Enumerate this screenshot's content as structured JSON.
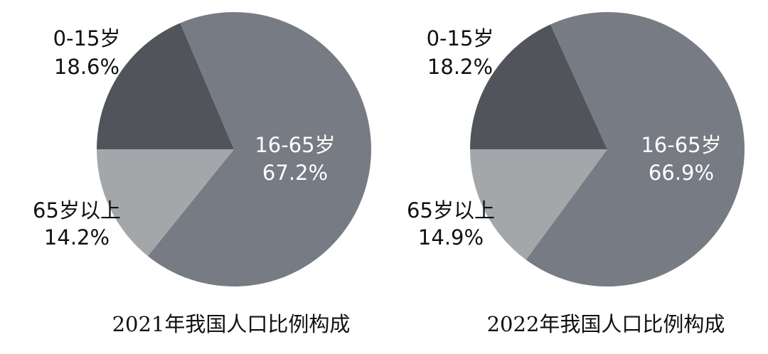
{
  "chart_data": [
    {
      "type": "pie",
      "title": "2021年我国人口比例构成",
      "slices": [
        {
          "name": "0-15岁",
          "value": 18.6,
          "value_label": "18.6%",
          "color": "#51555b"
        },
        {
          "name": "16-65岁",
          "value": 67.2,
          "value_label": "67.2%",
          "color": "#777b83"
        },
        {
          "name": "65岁以上",
          "value": 14.2,
          "value_label": "14.2%",
          "color": "#a4a7aa"
        }
      ]
    },
    {
      "type": "pie",
      "title": "2022年我国人口比例构成",
      "slices": [
        {
          "name": "0-15岁",
          "value": 18.2,
          "value_label": "18.2%",
          "color": "#51555b"
        },
        {
          "name": "16-65岁",
          "value": 66.9,
          "value_label": "66.9%",
          "color": "#777b83"
        },
        {
          "name": "65岁以上",
          "value": 14.9,
          "value_label": "14.9%",
          "color": "#a4a7aa"
        }
      ]
    }
  ]
}
